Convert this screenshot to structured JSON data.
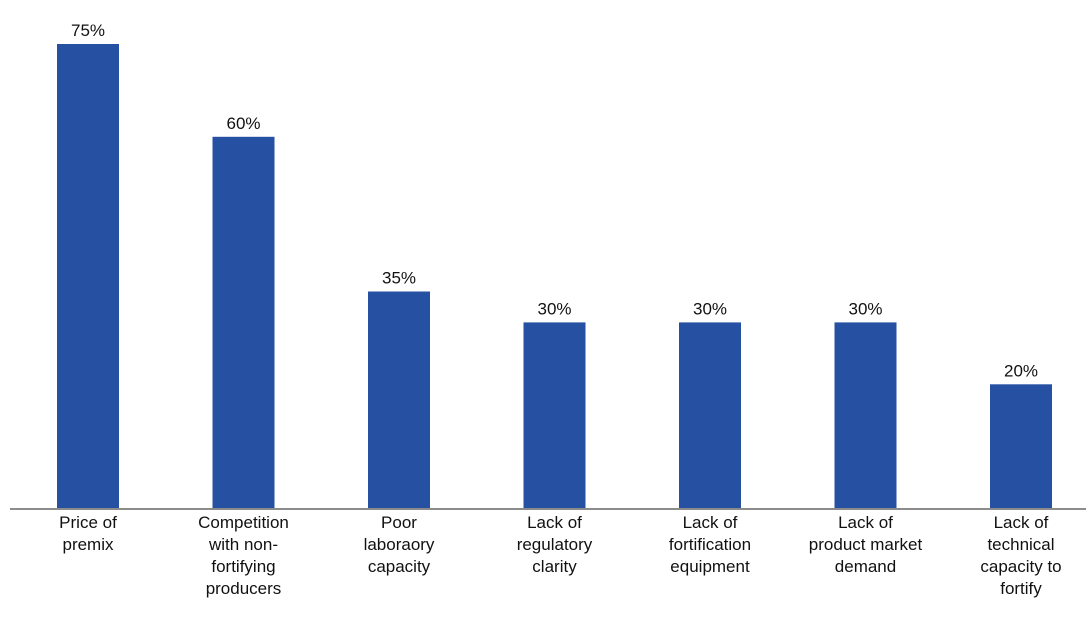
{
  "chart_data": {
    "type": "bar",
    "categories": [
      "Price of\npremix",
      "Competition\nwith non-\nfortifying\nproducers",
      "Poor\nlaboraory\ncapacity",
      "Lack of\nregulatory\nclarity",
      "Lack of\nfortification\nequipment",
      "Lack of\nproduct market\ndemand",
      "Lack of\ntechnical\ncapacity to\nfortify"
    ],
    "values": [
      75,
      60,
      35,
      30,
      30,
      30,
      20
    ],
    "data_labels": [
      "75%",
      "60%",
      "35%",
      "30%",
      "30%",
      "30%",
      "20%"
    ],
    "unit": "%",
    "ylim": [
      0,
      80
    ],
    "grid": false,
    "legend": "none",
    "bar_color": "#2651A3",
    "axis_color": "#8C8C8C"
  }
}
